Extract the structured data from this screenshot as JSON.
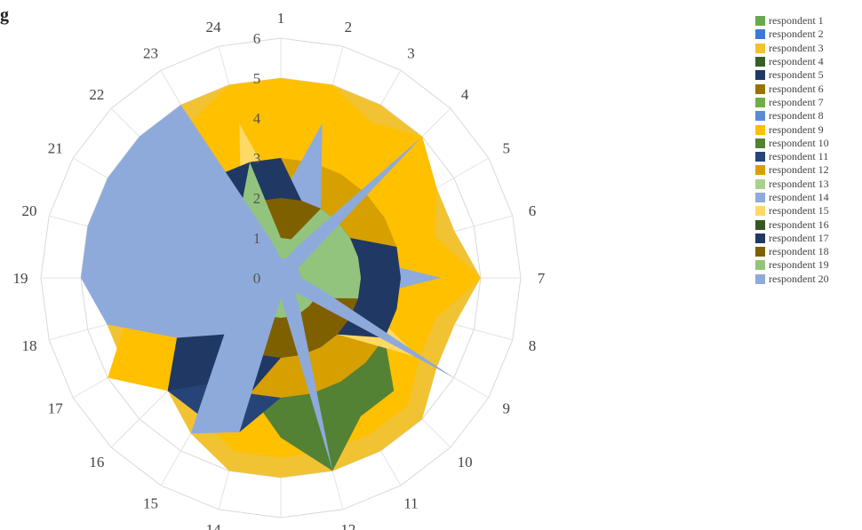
{
  "corner_text": "g",
  "chart_data": {
    "type": "radar",
    "categories": [
      "1",
      "2",
      "3",
      "4",
      "5",
      "6",
      "7",
      "8",
      "9",
      "10",
      "11",
      "12",
      "13",
      "14",
      "15",
      "16",
      "17",
      "18",
      "19",
      "20",
      "21",
      "22",
      "23",
      "24"
    ],
    "radial_ticks": [
      "0",
      "1",
      "2",
      "3",
      "4",
      "5",
      "6"
    ],
    "rlim": [
      0,
      6
    ],
    "grid": true,
    "legend_position": "right",
    "series": [
      {
        "name": "respondent 1",
        "color": "#6aa84f",
        "values": [
          1,
          1,
          1,
          1,
          1,
          1,
          1,
          1,
          1,
          1,
          1,
          1,
          1,
          1,
          1,
          1,
          1,
          1,
          1,
          1,
          1,
          1,
          1,
          1
        ]
      },
      {
        "name": "respondent 2",
        "color": "#3c78d8",
        "values": [
          1,
          1,
          1,
          1,
          1,
          1,
          1,
          1,
          1,
          1,
          1,
          1,
          1,
          1,
          1,
          1,
          1,
          1,
          1,
          1,
          1,
          1,
          1,
          1
        ]
      },
      {
        "name": "respondent 3",
        "color": "#f1c232",
        "values": [
          5,
          5,
          5,
          5,
          4.5,
          4.5,
          5,
          4.5,
          4.5,
          5,
          5,
          5,
          5,
          5,
          4.5,
          4,
          4.5,
          4.5,
          4.5,
          4,
          4.5,
          4.5,
          5,
          5
        ]
      },
      {
        "name": "respondent 4",
        "color": "#3a5e27",
        "values": [
          1,
          1,
          1,
          1,
          1,
          1,
          1,
          1,
          1,
          1,
          1,
          1,
          1,
          1,
          1,
          1,
          1,
          1,
          1,
          1,
          1,
          1,
          1,
          1
        ]
      },
      {
        "name": "respondent 5",
        "color": "#1f3864",
        "values": [
          1,
          1,
          1,
          1,
          1,
          1,
          1,
          1,
          1,
          1,
          1,
          1,
          1,
          1,
          1,
          1,
          1,
          1,
          1,
          1,
          1,
          1,
          1,
          1
        ]
      },
      {
        "name": "respondent 6",
        "color": "#997300",
        "values": [
          4,
          3,
          3,
          3,
          4,
          4,
          3,
          3,
          3,
          3,
          3,
          3,
          3,
          3,
          3,
          3,
          3,
          3,
          3,
          3,
          3,
          3,
          3,
          4
        ]
      },
      {
        "name": "respondent 7",
        "color": "#70ad47",
        "values": [
          1,
          1,
          1,
          1,
          1,
          1,
          1,
          1,
          1,
          1,
          1,
          1,
          1,
          1,
          1,
          1,
          1,
          1,
          1,
          1,
          1,
          1,
          1,
          1
        ]
      },
      {
        "name": "respondent 8",
        "color": "#5b8ad6",
        "values": [
          1,
          1,
          1,
          1,
          1,
          1,
          1,
          1,
          1,
          1,
          1,
          1,
          1,
          1,
          1,
          1,
          1,
          1,
          1,
          1,
          1,
          1,
          1,
          1
        ]
      },
      {
        "name": "respondent 9",
        "color": "#ffc000",
        "values": [
          5,
          5,
          4.5,
          5,
          4.5,
          4,
          5,
          4,
          4,
          4.5,
          4.5,
          4.5,
          4.5,
          4.5,
          4,
          4,
          5,
          4,
          4,
          4,
          5,
          4,
          4.5,
          5
        ]
      },
      {
        "name": "respondent 10",
        "color": "#548235",
        "values": [
          2,
          2,
          2,
          2,
          2,
          2,
          2,
          2,
          3,
          4,
          4,
          5,
          4,
          3,
          2,
          2,
          2,
          2,
          2,
          2,
          2,
          2,
          2,
          2
        ]
      },
      {
        "name": "respondent 11",
        "color": "#264478",
        "values": [
          3,
          2,
          2,
          2,
          2,
          3,
          3,
          3,
          3,
          3,
          3,
          3,
          3,
          4,
          4,
          4,
          3,
          3,
          3,
          4,
          3,
          3,
          3,
          3
        ]
      },
      {
        "name": "respondent 12",
        "color": "#d6a000",
        "values": [
          3,
          3,
          3,
          3,
          3,
          3,
          3,
          3,
          3,
          3,
          3,
          3,
          3,
          3,
          3,
          3,
          3,
          3,
          3,
          3,
          3,
          3,
          3,
          3
        ]
      },
      {
        "name": "respondent 13",
        "color": "#a9d18e",
        "values": [
          2,
          4,
          2,
          2,
          2,
          2,
          2,
          2,
          2,
          2,
          2,
          2,
          2,
          2,
          2,
          2,
          2,
          2,
          2,
          2,
          2,
          2,
          2,
          2
        ]
      },
      {
        "name": "respondent 14",
        "color": "#8faadc",
        "values": [
          2,
          4,
          2,
          2,
          2,
          2,
          4,
          2,
          2,
          2,
          2,
          2,
          2,
          2,
          2,
          2,
          2,
          2,
          2,
          2,
          2,
          2,
          2,
          2
        ]
      },
      {
        "name": "respondent 15",
        "color": "#ffd966",
        "values": [
          2,
          2,
          2,
          2,
          2,
          2,
          2,
          2,
          4,
          2,
          2,
          2,
          2,
          2,
          2,
          2,
          2,
          2,
          2,
          2,
          2,
          2,
          2,
          4
        ]
      },
      {
        "name": "respondent 16",
        "color": "#375623",
        "values": [
          1,
          1,
          1,
          1,
          1,
          1,
          1,
          1,
          1,
          1,
          1,
          1,
          1,
          1,
          1,
          1,
          1,
          1,
          1,
          1,
          1,
          1,
          1,
          1
        ]
      },
      {
        "name": "respondent 17",
        "color": "#203864",
        "values": [
          3,
          2,
          2,
          2,
          2,
          3,
          3,
          3,
          3,
          2,
          2,
          2,
          2,
          3,
          3,
          4,
          3,
          3,
          3,
          4,
          3,
          3,
          3,
          3
        ]
      },
      {
        "name": "respondent 18",
        "color": "#7f6000",
        "values": [
          2,
          2,
          2,
          2,
          2,
          2,
          2,
          2,
          2,
          2,
          2,
          2,
          2,
          2,
          2,
          2,
          2,
          2,
          2,
          2,
          2,
          2,
          2,
          2
        ]
      },
      {
        "name": "respondent 19",
        "color": "#93c47d",
        "values": [
          1,
          1,
          2,
          2,
          2,
          2,
          2,
          2,
          1,
          1,
          1,
          1,
          1,
          1,
          1,
          1,
          1,
          1,
          1,
          1,
          2,
          2,
          2,
          3
        ]
      },
      {
        "name": "respondent 20",
        "color": "#8eaadb",
        "values": [
          0.5,
          0.5,
          1,
          5,
          0.5,
          0.5,
          0.5,
          1,
          5,
          0.5,
          1,
          5,
          0.5,
          4,
          4.5,
          2,
          3,
          4.5,
          5,
          5,
          5,
          5,
          5,
          1
        ]
      }
    ]
  }
}
